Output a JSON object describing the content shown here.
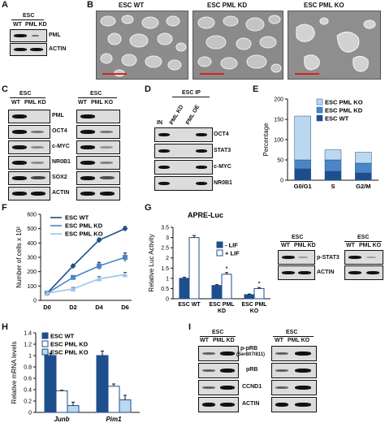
{
  "panel_letters": {
    "A": "A",
    "B": "B",
    "C": "C",
    "D": "D",
    "E": "E",
    "F": "F",
    "G": "G",
    "H": "H",
    "I": "I"
  },
  "colors": {
    "dark_blue": "#1f4e8c",
    "mid_blue": "#4a86c5",
    "light_blue": "#bcd8ef",
    "scale_red": "#d9201f"
  },
  "panel_a": {
    "header": "ESC",
    "lanes": [
      "WT",
      "PML KD"
    ],
    "blots": [
      "PML",
      "ACTIN"
    ]
  },
  "panel_b": {
    "images": [
      "ESC WT",
      "ESC PML KD",
      "ESC PML KO"
    ]
  },
  "panel_c": {
    "left": {
      "header": "ESC",
      "lanes": [
        "WT",
        "PML KD"
      ]
    },
    "right": {
      "header": "ESC",
      "lanes": [
        "WT",
        "PML KO"
      ]
    },
    "blots": [
      "PML",
      "OCT4",
      "c-MYC",
      "NR0B1",
      "SOX2",
      "ACTIN"
    ]
  },
  "panel_d": {
    "header": "ESC IP",
    "lanes": [
      "IN",
      "PML KD",
      "PML OE"
    ],
    "blots": [
      "OCT4",
      "STAT3",
      "c-MYC",
      "NR0B1"
    ]
  },
  "panel_g_blots": {
    "left": {
      "header": "ESC",
      "lanes": [
        "WT",
        "PML KD"
      ]
    },
    "right": {
      "header": "ESC",
      "lanes": [
        "WT",
        "PML KO"
      ]
    },
    "blots": [
      "p-STAT3",
      "ACTIN"
    ]
  },
  "panel_i": {
    "left": {
      "header": "ESC",
      "lanes": [
        "WT",
        "PML KD"
      ]
    },
    "right": {
      "header": "ESC",
      "lanes": [
        "WT",
        "PML KO"
      ]
    },
    "blots": [
      "p-pRB",
      "(Ser807/811)",
      "pRB",
      "CCND1",
      "ACTIN"
    ]
  },
  "chart_data": [
    {
      "panel": "E",
      "type": "bar",
      "stacked": true,
      "categories": [
        "G0/G1",
        "S",
        "G2/M"
      ],
      "ylabel": "Percentage",
      "xlabel": "",
      "ylim": [
        0,
        200
      ],
      "yticks": [
        "0",
        "50",
        "100",
        "150",
        "200"
      ],
      "legend_position": "top-right",
      "series": [
        {
          "name": "ESC WT",
          "color": "#1f4e8c",
          "values": [
            28,
            22,
            18
          ]
        },
        {
          "name": "ESC PML KD",
          "color": "#4a86c5",
          "values": [
            22,
            28,
            24
          ]
        },
        {
          "name": "ESC PML KO",
          "color": "#bcd8ef",
          "values": [
            108,
            25,
            27
          ]
        }
      ]
    },
    {
      "panel": "F",
      "type": "line",
      "categories": [
        "D0",
        "D2",
        "D4",
        "D6"
      ],
      "ylabel": "Number of cells x 10²",
      "xlabel": "",
      "ylim": [
        0,
        600
      ],
      "yticks": [
        "0",
        "100",
        "200",
        "300",
        "400",
        "500",
        "600"
      ],
      "legend_position": "top-left",
      "series": [
        {
          "name": "ESC WT",
          "color": "#1f4e8c",
          "marker": "diamond",
          "values": [
            50,
            240,
            420,
            500
          ],
          "errors": [
            5,
            10,
            15,
            15
          ]
        },
        {
          "name": "ESC PML KD",
          "color": "#4a86c5",
          "marker": "square",
          "values": [
            50,
            160,
            240,
            300
          ],
          "errors": [
            5,
            12,
            25,
            30
          ]
        },
        {
          "name": "ESC PML KO",
          "color": "#9cc3e6",
          "marker": "triangle",
          "values": [
            50,
            80,
            150,
            180
          ],
          "errors": [
            5,
            10,
            15,
            15
          ]
        }
      ]
    },
    {
      "panel": "G",
      "type": "bar",
      "title": "APRE-Luc",
      "categories": [
        "ESC WT",
        "ESC PML KD",
        "ESC PML KO"
      ],
      "ylabel": "Relative Luc Activity",
      "xlabel": "",
      "ylim": [
        0,
        3.5
      ],
      "yticks": [
        "0",
        "0.5",
        "1",
        "1.5",
        "2",
        "2.5",
        "3",
        "3.5"
      ],
      "legend_position": "center-right",
      "series": [
        {
          "name": "- LIF",
          "color": "#1f4e8c",
          "values": [
            1.0,
            0.65,
            0.2
          ],
          "errors": [
            0.05,
            0.04,
            0.03
          ]
        },
        {
          "name": "+ LIF",
          "color": "#ffffff",
          "values": [
            3.0,
            1.2,
            0.5
          ],
          "errors": [
            0.1,
            0.08,
            0.05
          ]
        }
      ],
      "annotations": [
        "*",
        "*"
      ]
    },
    {
      "panel": "H",
      "type": "bar",
      "categories": [
        "Junb",
        "Pim1"
      ],
      "ylabel": "Relative mRNA levels",
      "xlabel": "",
      "ylim": [
        0,
        1.4
      ],
      "yticks": [
        "0",
        "0.2",
        "0.4",
        "0.6",
        "0.8",
        "1",
        "1.2",
        "1.4"
      ],
      "legend_position": "top-left",
      "series": [
        {
          "name": "ESC WT",
          "color": "#1f4e8c",
          "values": [
            1.0,
            1.0
          ],
          "errors": [
            0.04,
            0.08
          ]
        },
        {
          "name": "ESC PML KD",
          "color": "#ffffff",
          "values": [
            0.38,
            0.46
          ],
          "errors": [
            0.01,
            0.04
          ]
        },
        {
          "name": "ESC PML KO",
          "color": "#bcd8ef",
          "values": [
            0.12,
            0.22
          ],
          "errors": [
            0.06,
            0.08
          ]
        }
      ]
    }
  ]
}
